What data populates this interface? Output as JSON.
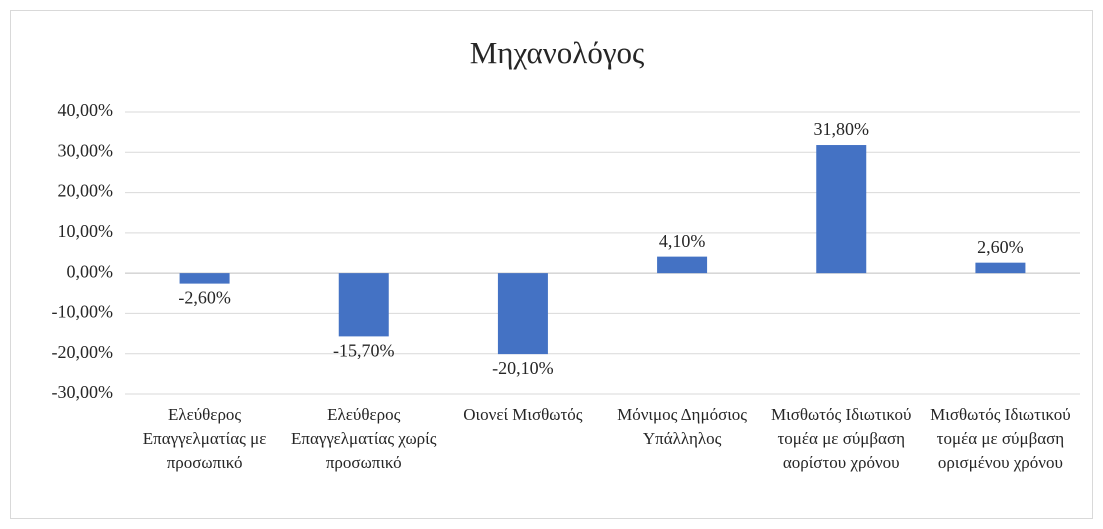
{
  "chart_data": {
    "type": "bar",
    "title": "Μηχανολόγος",
    "categories": [
      "Ελεύθερος Επαγγελματίας με προσωπικό",
      "Ελεύθερος Επαγγελματίας χωρίς προσωπικό",
      "Οιονεί Μισθωτός",
      "Μόνιμος Δημόσιος Υπάλληλος",
      "Μισθωτός Ιδιωτικού τομέα με σύμβαση αορίστου χρόνου",
      "Μισθωτός Ιδιωτικού τομέα με σύμβαση ορισμένου χρόνου"
    ],
    "values": [
      -2.6,
      -15.7,
      -20.1,
      4.1,
      31.8,
      2.6
    ],
    "value_labels": [
      "-2,60%",
      "-15,70%",
      "-20,10%",
      "4,10%",
      "31,80%",
      "2,60%"
    ],
    "color": "#4472c4",
    "ylim": [
      -30,
      40
    ],
    "yticks": [
      {
        "value": -30,
        "label": "-30,00%"
      },
      {
        "value": -20,
        "label": "-20,00%"
      },
      {
        "value": -10,
        "label": "-10,00%"
      },
      {
        "value": 0,
        "label": "0,00%"
      },
      {
        "value": 10,
        "label": "10,00%"
      },
      {
        "value": 20,
        "label": "20,00%"
      },
      {
        "value": 30,
        "label": "30,00%"
      },
      {
        "value": 40,
        "label": "40,00%"
      }
    ],
    "grid": true
  }
}
